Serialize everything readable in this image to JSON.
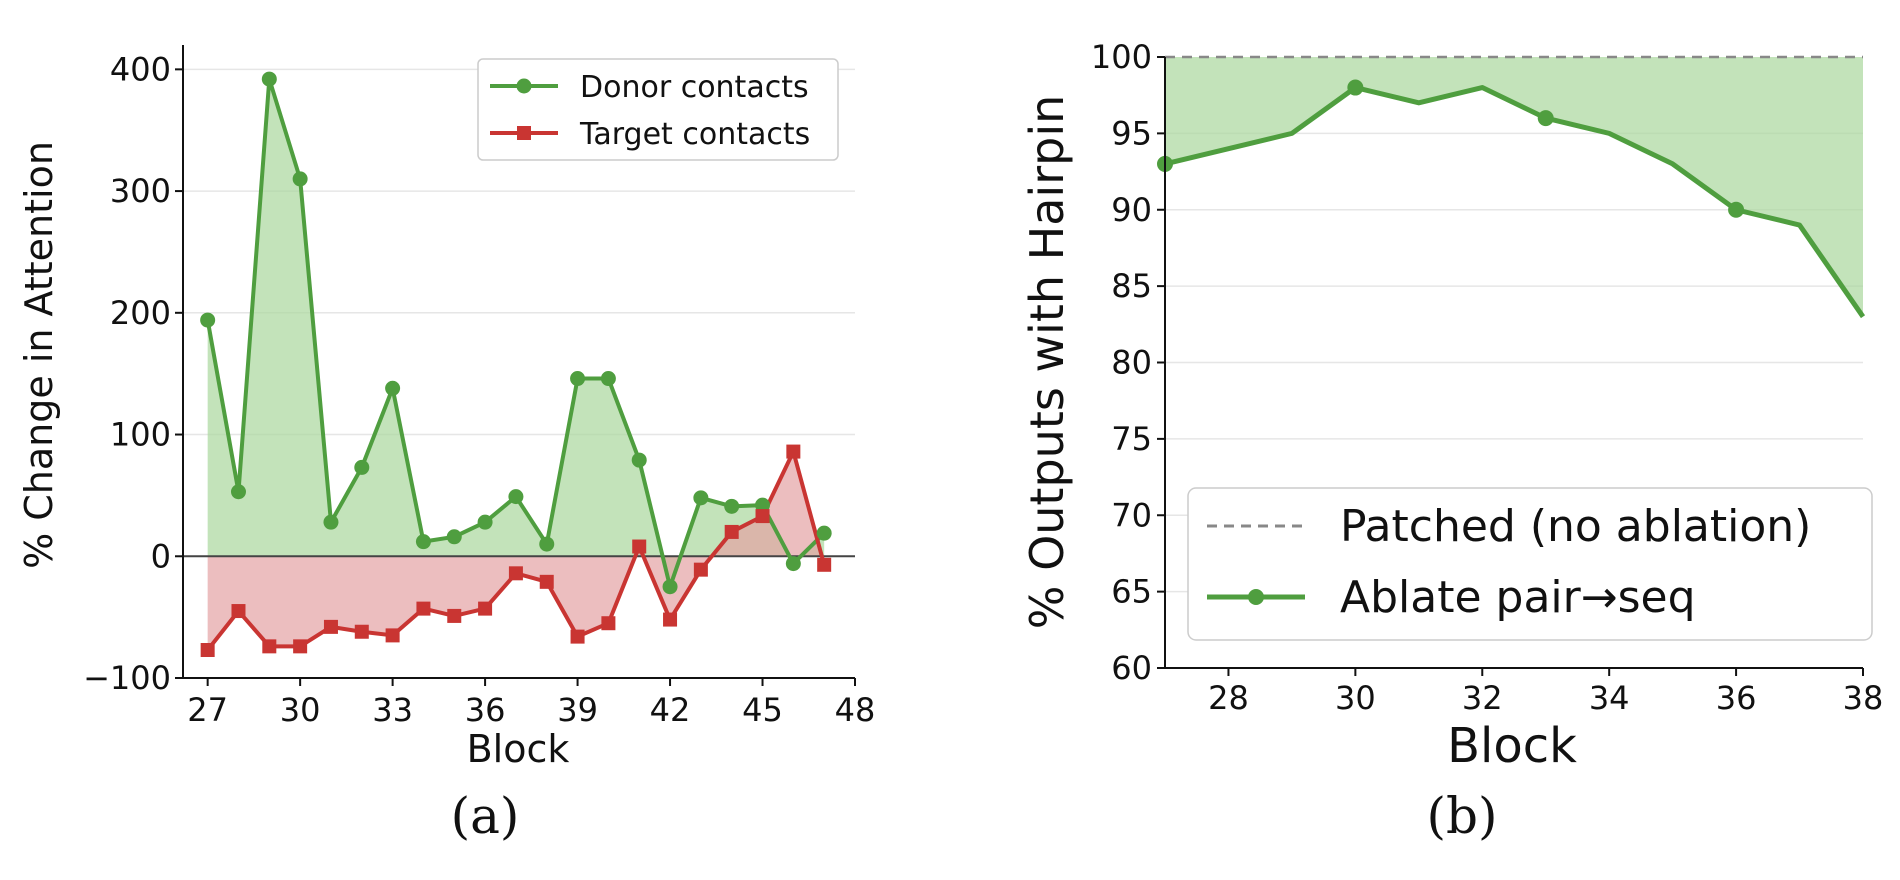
{
  "colors": {
    "donor": "#4f9e3f",
    "donor_fill": "#a9d79c",
    "target": "#c93532",
    "target_fill": "#e4a3a4",
    "axis": "#111111",
    "grid": "#e6e6e6",
    "zero_line": "#444444",
    "patched_line": "#888888"
  },
  "chart_data": [
    {
      "type": "line",
      "panel": "(a)",
      "xlabel": "Block",
      "ylabel": "% Change in Attention",
      "xlim": [
        26.2,
        48
      ],
      "ylim": [
        -100,
        420
      ],
      "xticks": [
        27,
        30,
        33,
        36,
        39,
        42,
        45,
        48
      ],
      "yticks": [
        -100,
        0,
        100,
        200,
        300,
        400
      ],
      "ytick_labels": [
        "−100",
        "0",
        "100",
        "200",
        "300",
        "400"
      ],
      "grid": "horizontal",
      "zero_line": true,
      "fill_to_zero": true,
      "legend_position": "top-right",
      "x": [
        27,
        28,
        29,
        30,
        31,
        32,
        33,
        34,
        35,
        36,
        37,
        38,
        39,
        40,
        41,
        42,
        43,
        44,
        45,
        46,
        47
      ],
      "series": [
        {
          "name": "Donor contacts",
          "marker": "circle",
          "values": [
            194,
            53,
            392,
            310,
            28,
            73,
            138,
            12,
            16,
            28,
            49,
            10,
            146,
            146,
            79,
            -25,
            48,
            41,
            42,
            -6,
            19
          ]
        },
        {
          "name": "Target contacts",
          "marker": "square",
          "values": [
            -77,
            -45,
            -74,
            -74,
            -58,
            -62,
            -65,
            -43,
            -49,
            -43,
            -14,
            -21,
            -66,
            -55,
            8,
            -52,
            -11,
            20,
            33,
            86,
            -7
          ]
        }
      ]
    },
    {
      "type": "line",
      "panel": "(b)",
      "xlabel": "Block",
      "ylabel": "% Outputs with Hairpin",
      "xlim": [
        27,
        38
      ],
      "ylim": [
        60,
        100
      ],
      "xticks": [
        28,
        30,
        32,
        34,
        36,
        38
      ],
      "yticks": [
        60,
        65,
        70,
        75,
        80,
        85,
        90,
        95,
        100
      ],
      "grid": "horizontal",
      "fill_between_reference": true,
      "legend_position": "lower-right",
      "reference": {
        "name": "Patched (no ablation)",
        "style": "dashed",
        "value": 100
      },
      "series": [
        {
          "name": "Ablate pair→seq",
          "marker": "circle",
          "markevery": 3,
          "x": [
            27,
            28,
            29,
            30,
            31,
            32,
            33,
            34,
            35,
            36,
            37,
            38
          ],
          "values": [
            93,
            94,
            95,
            98,
            97,
            98,
            96,
            95,
            93,
            90,
            89,
            83
          ]
        }
      ]
    }
  ]
}
